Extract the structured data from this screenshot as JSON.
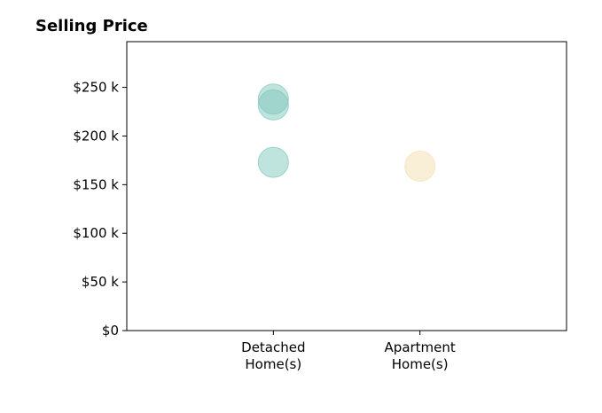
{
  "chart_data": {
    "type": "scatter",
    "title": "Selling Price",
    "xlim": [
      0,
      3
    ],
    "xticks": [
      {
        "value": 1,
        "label": "Detached Home(s)"
      },
      {
        "value": 2,
        "label": "Apartment Home(s)"
      }
    ],
    "ylim": [
      0,
      297000
    ],
    "yticks": [
      {
        "value": 0,
        "label": "$0"
      },
      {
        "value": 50000,
        "label": "$50 k"
      },
      {
        "value": 100000,
        "label": "$100 k"
      },
      {
        "value": 150000,
        "label": "$150 k"
      },
      {
        "value": 200000,
        "label": "$200 k"
      },
      {
        "value": 250000,
        "label": "$250 k"
      }
    ],
    "series": [
      {
        "color": "#7fc7bb",
        "x": [
          1,
          1,
          1
        ],
        "values": [
          238000,
          232000,
          173000
        ]
      },
      {
        "color": "#f3dfb0",
        "x": [
          2
        ],
        "values": [
          169000
        ]
      }
    ]
  }
}
